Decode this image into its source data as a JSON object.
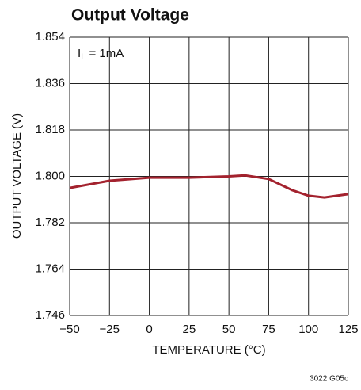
{
  "chart_data": {
    "type": "line",
    "title": "Output Voltage",
    "annotation": {
      "main": "I",
      "sub": "L",
      "rest": " = 1mA"
    },
    "x_label": "TEMPERATURE (°C)",
    "y_label": "OUTPUT VOLTAGE (V)",
    "footnote": "3022 G05c",
    "x": [
      -50,
      -25,
      0,
      25,
      50,
      60,
      75,
      90,
      100,
      110,
      125
    ],
    "series": [
      {
        "name": "IL = 1mA",
        "color": "#a3222e",
        "values": [
          1.7955,
          1.7983,
          1.7995,
          1.7995,
          1.8,
          1.8004,
          1.799,
          1.7946,
          1.7925,
          1.7918,
          1.7931
        ]
      }
    ],
    "xlim": [
      -50,
      125
    ],
    "xticks": [
      {
        "value": -50,
        "label": "−50"
      },
      {
        "value": -25,
        "label": "−25"
      },
      0,
      25,
      50,
      75,
      100,
      125
    ],
    "ylim": [
      1.746,
      1.854
    ],
    "yticks": [
      {
        "value": 1.746,
        "label": "1.746"
      },
      {
        "value": 1.764,
        "label": "1.764"
      },
      {
        "value": 1.782,
        "label": "1.782"
      },
      {
        "value": 1.8,
        "label": "1.800"
      },
      {
        "value": 1.818,
        "label": "1.818"
      },
      {
        "value": 1.836,
        "label": "1.836"
      },
      {
        "value": 1.854,
        "label": "1.854"
      }
    ],
    "grid": true
  }
}
